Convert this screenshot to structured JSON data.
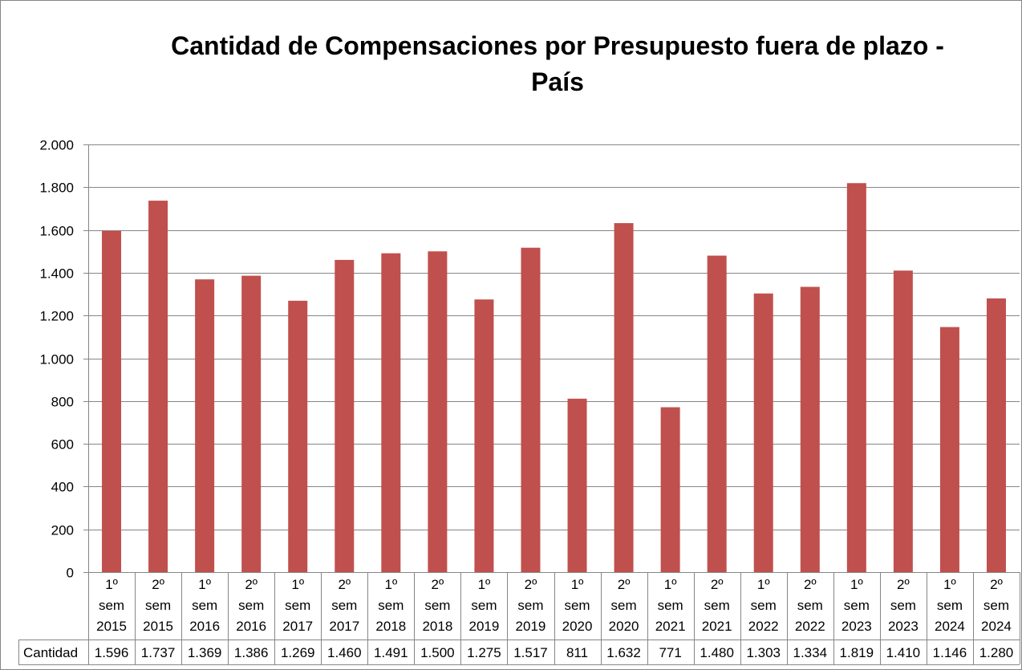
{
  "chart_data": {
    "type": "bar",
    "title_line1": "Cantidad de Compensaciones por Presupuesto fuera de plazo  -",
    "title_line2": "País",
    "categories": [
      [
        "1º",
        "sem",
        "2015"
      ],
      [
        "2º",
        "sem",
        "2015"
      ],
      [
        "1º",
        "sem",
        "2016"
      ],
      [
        "2º",
        "sem",
        "2016"
      ],
      [
        "1º",
        "sem",
        "2017"
      ],
      [
        "2º",
        "sem",
        "2017"
      ],
      [
        "1º",
        "sem",
        "2018"
      ],
      [
        "2º",
        "sem",
        "2018"
      ],
      [
        "1º",
        "sem",
        "2019"
      ],
      [
        "2º",
        "sem",
        "2019"
      ],
      [
        "1º",
        "sem",
        "2020"
      ],
      [
        "2º",
        "sem",
        "2020"
      ],
      [
        "1º",
        "sem",
        "2021"
      ],
      [
        "2º",
        "sem",
        "2021"
      ],
      [
        "1º",
        "sem",
        "2022"
      ],
      [
        "2º",
        "sem",
        "2022"
      ],
      [
        "1º",
        "sem",
        "2023"
      ],
      [
        "2º",
        "sem",
        "2023"
      ],
      [
        "1º",
        "sem",
        "2024"
      ],
      [
        "2º",
        "sem",
        "2024"
      ]
    ],
    "series": [
      {
        "name": "Cantidad",
        "values": [
          1596,
          1737,
          1369,
          1386,
          1269,
          1460,
          1491,
          1500,
          1275,
          1517,
          811,
          1632,
          771,
          1480,
          1303,
          1334,
          1819,
          1410,
          1146,
          1280
        ],
        "labels": [
          "1.596",
          "1.737",
          "1.369",
          "1.386",
          "1.269",
          "1.460",
          "1.491",
          "1.500",
          "1.275",
          "1.517",
          "811",
          "1.632",
          "771",
          "1.480",
          "1.303",
          "1.334",
          "1.819",
          "1.410",
          "1.146",
          "1.280"
        ],
        "color": "#C0504D"
      }
    ],
    "ylim": [
      0,
      2000
    ],
    "yticks": [
      0,
      200,
      400,
      600,
      800,
      1000,
      1200,
      1400,
      1600,
      1800,
      2000
    ],
    "ytick_labels": [
      "0",
      "200",
      "400",
      "600",
      "800",
      "1.000",
      "1.200",
      "1.400",
      "1.600",
      "1.800",
      "2.000"
    ],
    "grid": true,
    "data_table": true,
    "gridline_color": "#868686",
    "axis_color": "#868686"
  }
}
